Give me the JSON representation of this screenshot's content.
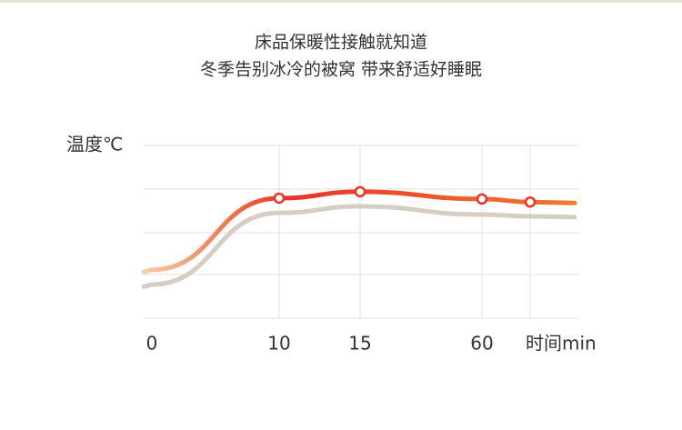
{
  "chart_data": {
    "type": "line",
    "title": "床品保暖性接触就知道",
    "subtitle": "冬季告别冰冷的被窝 带来舒适好睡眠",
    "y_label": "温度℃",
    "x_label": "时间min",
    "categories": [
      "0",
      "10",
      "15",
      "60",
      null
    ],
    "series": [
      {
        "color": "#e8322a",
        "values": [
          1.12,
          2.78,
          2.93,
          2.76,
          2.69
        ]
      },
      {
        "color": "#d6cdc4",
        "values": [
          0.78,
          2.44,
          2.59,
          2.4,
          2.36
        ]
      }
    ],
    "markers": true,
    "ylim": [
      0,
      4
    ]
  }
}
